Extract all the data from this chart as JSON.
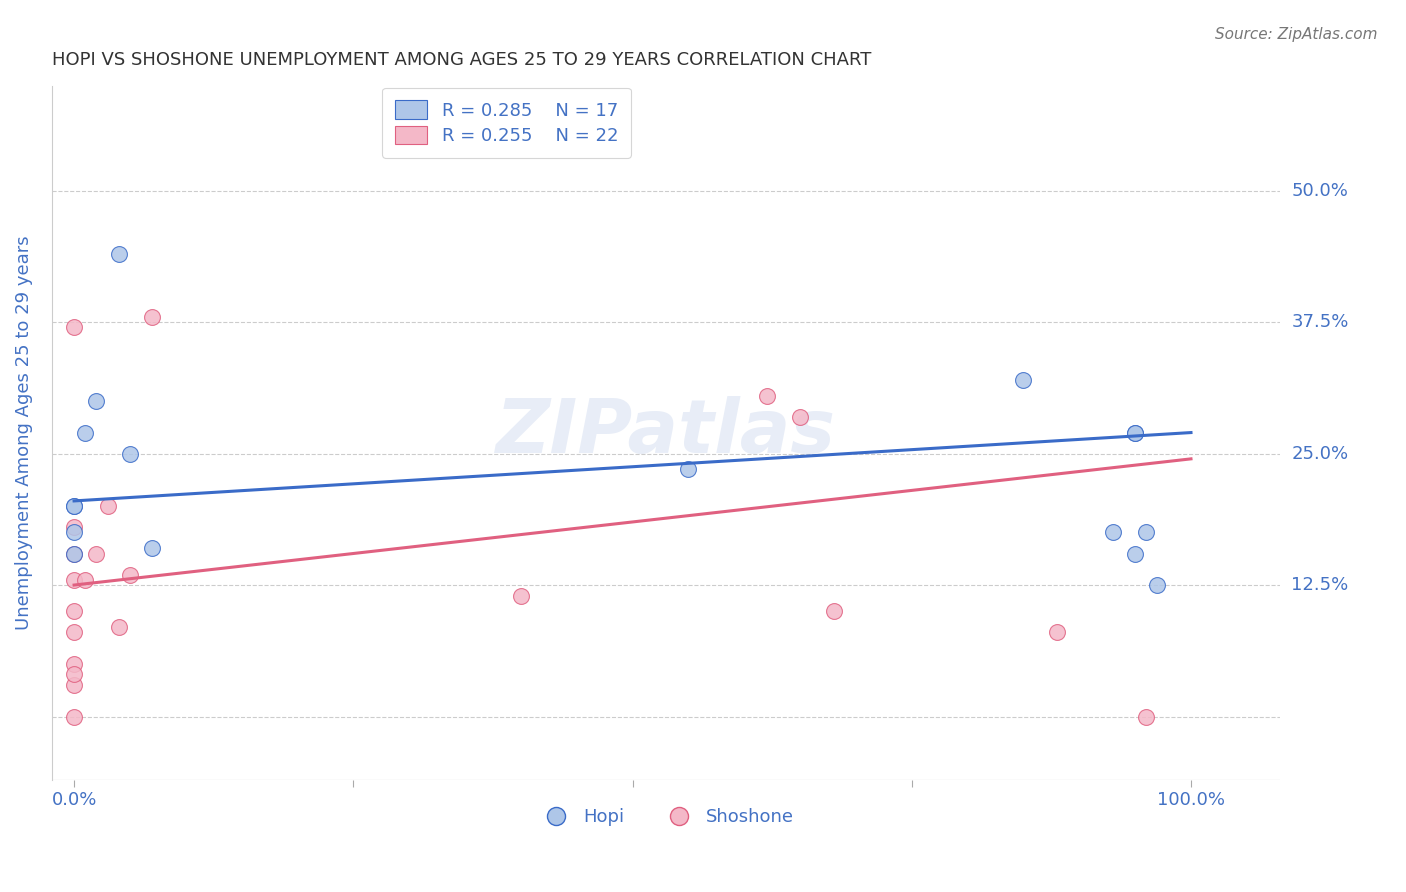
{
  "title": "HOPI VS SHOSHONE UNEMPLOYMENT AMONG AGES 25 TO 29 YEARS CORRELATION CHART",
  "source": "Source: ZipAtlas.com",
  "ylabel": "Unemployment Among Ages 25 to 29 years",
  "hopi_x": [
    0.0,
    0.0,
    0.0,
    0.0,
    0.01,
    0.02,
    0.04,
    0.05,
    0.07,
    0.55,
    0.85,
    0.93,
    0.95,
    0.95,
    0.95,
    0.96,
    0.97
  ],
  "hopi_y": [
    0.2,
    0.175,
    0.2,
    0.155,
    0.27,
    0.3,
    0.44,
    0.25,
    0.16,
    0.235,
    0.32,
    0.175,
    0.155,
    0.27,
    0.27,
    0.175,
    0.125
  ],
  "shoshone_x": [
    0.0,
    0.0,
    0.0,
    0.0,
    0.0,
    0.0,
    0.0,
    0.0,
    0.0,
    0.0,
    0.01,
    0.02,
    0.03,
    0.04,
    0.05,
    0.07,
    0.4,
    0.62,
    0.65,
    0.68,
    0.88,
    0.96
  ],
  "shoshone_y": [
    0.0,
    0.03,
    0.05,
    0.08,
    0.1,
    0.13,
    0.155,
    0.18,
    0.37,
    0.04,
    0.13,
    0.155,
    0.2,
    0.085,
    0.135,
    0.38,
    0.115,
    0.305,
    0.285,
    0.1,
    0.08,
    0.0
  ],
  "hopi_r": 0.285,
  "hopi_n": 17,
  "shoshone_r": 0.255,
  "shoshone_n": 22,
  "hopi_color": "#aec6e8",
  "shoshone_color": "#f4b8c8",
  "hopi_line_color": "#3a6bc8",
  "shoshone_line_color": "#e06080",
  "hopi_line_start_y": 0.205,
  "hopi_line_end_y": 0.27,
  "shoshone_line_start_y": 0.125,
  "shoshone_line_end_y": 0.245,
  "xlim": [
    -0.02,
    1.08
  ],
  "ylim": [
    -0.06,
    0.6
  ],
  "xticks": [
    0.0,
    0.25,
    0.5,
    0.75,
    1.0
  ],
  "xtick_labels": [
    "0.0%",
    "",
    "",
    "",
    "100.0%"
  ],
  "ytick_positions": [
    0.0,
    0.125,
    0.25,
    0.375,
    0.5
  ],
  "ytick_labels": [
    "",
    "12.5%",
    "25.0%",
    "37.5%",
    "50.0%"
  ],
  "grid_color": "#cccccc",
  "background_color": "#ffffff",
  "title_color": "#333333",
  "axis_label_color": "#4472c4",
  "watermark": "ZIPatlas",
  "marker_size": 130
}
